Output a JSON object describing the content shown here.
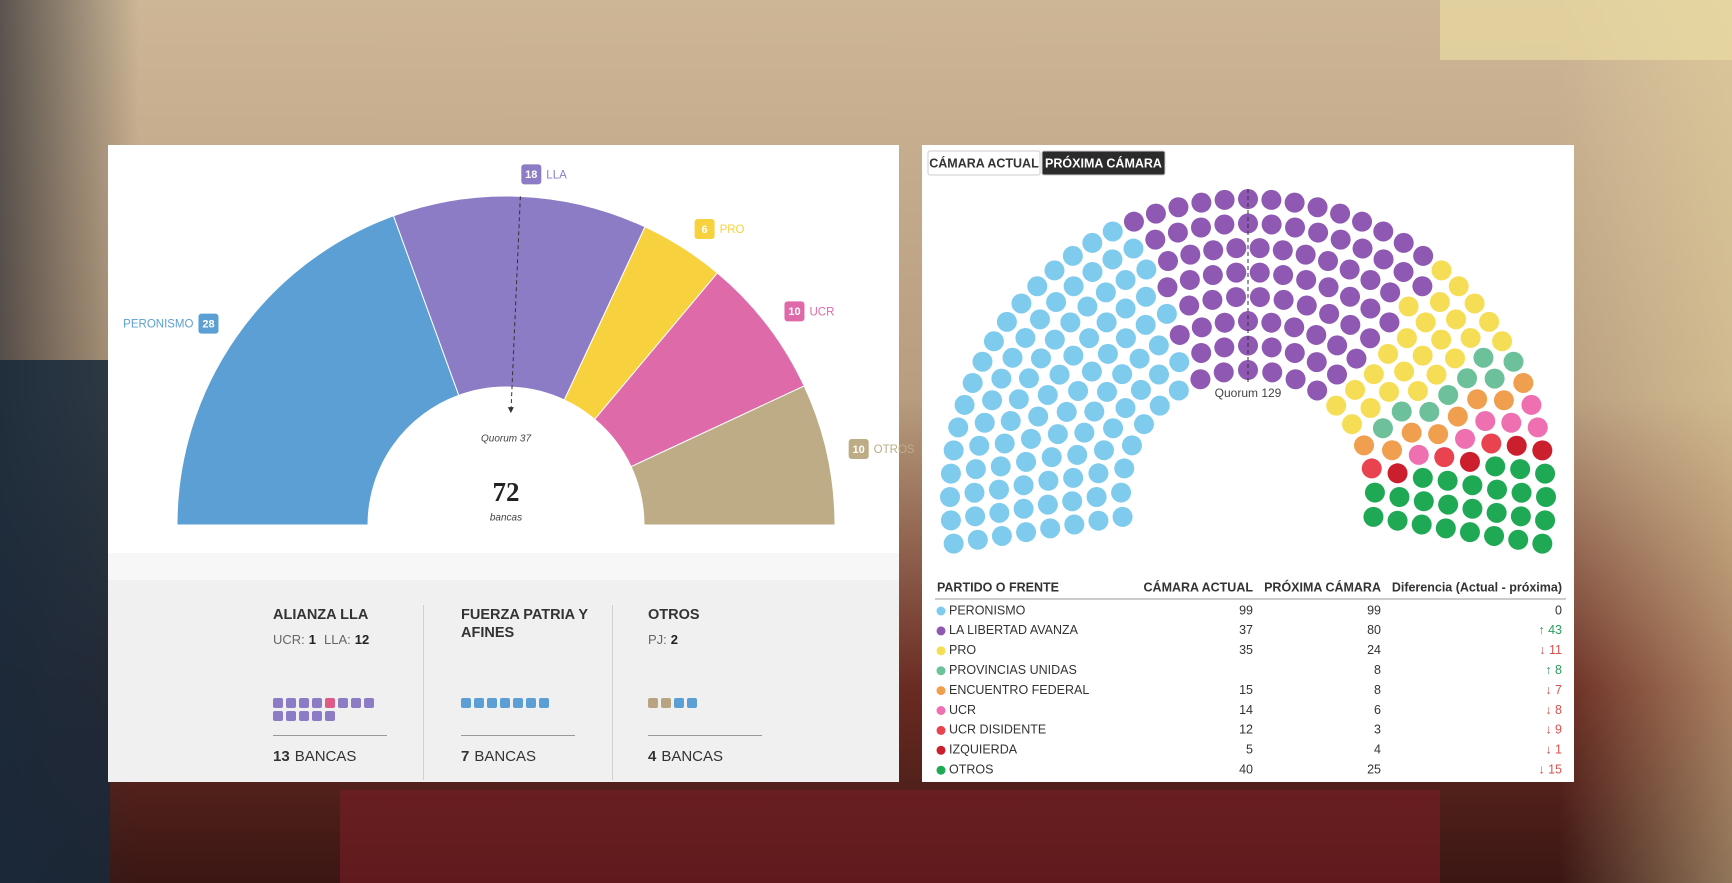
{
  "chart_data": [
    {
      "type": "pie",
      "semicircle": true,
      "categories": [
        "PERONISMO",
        "LLA",
        "PRO",
        "UCR",
        "OTROS"
      ],
      "values": [
        28,
        18,
        6,
        10,
        10
      ],
      "colors": [
        "#5b9fd4",
        "#8c7cc5",
        "#f7d23e",
        "#df6aaa",
        "#bdac85"
      ],
      "total": 72,
      "total_label": "bancas",
      "quorum": {
        "value": 37,
        "label": "Quorum 37"
      }
    },
    {
      "type": "parliament",
      "active_series": 1,
      "category_label": "PARTIDO O FRENTE",
      "categories": [
        "PERONISMO",
        "LA LIBERTAD AVANZA",
        "PRO",
        "PROVINCIAS UNIDAS",
        "ENCUENTRO FEDERAL",
        "UCR",
        "UCR DISIDENTE",
        "IZQUIERDA",
        "OTROS"
      ],
      "colors": [
        "#7fcbee",
        "#8f58b3",
        "#f5de55",
        "#6cc19a",
        "#ef9f4e",
        "#ee70b0",
        "#e8434f",
        "#cc1f2d",
        "#20a955"
      ],
      "series": [
        {
          "name": "CÁMARA ACTUAL",
          "values": [
            99,
            37,
            35,
            null,
            15,
            14,
            12,
            5,
            40
          ]
        },
        {
          "name": "PRÓXIMA CÁMARA",
          "values": [
            99,
            80,
            24,
            8,
            8,
            6,
            3,
            4,
            25
          ]
        }
      ],
      "diff_label": "Diferencia (Actual - próxima)",
      "diff_labels": [
        "0",
        "↑ 43",
        "↓ 11",
        "↑ 8",
        "↓ 7",
        "↓ 8",
        "↓ 9",
        "↓ 1",
        "↓ 15"
      ],
      "quorum": {
        "value": 129,
        "label": "Quorum 129"
      }
    }
  ],
  "coalitions": [
    {
      "title": "ALIANZA LLA",
      "breakdown": [
        {
          "label": "UCR:",
          "value": 1
        },
        {
          "label": "LLA:",
          "value": 12
        }
      ],
      "squares": [
        {
          "color": "#8c7cc5",
          "count": 4
        },
        {
          "color": "#df5a86",
          "count": 1
        },
        {
          "color": "#8c7cc5",
          "count": 8
        }
      ],
      "total": 13,
      "unit": "BANCAS"
    },
    {
      "title": "FUERZA PATRIA Y AFINES",
      "breakdown": [],
      "squares": [
        {
          "color": "#5b9fd4",
          "count": 7
        }
      ],
      "total": 7,
      "unit": "BANCAS"
    },
    {
      "title": "OTROS",
      "breakdown": [
        {
          "label": "PJ:",
          "value": 2
        }
      ],
      "squares": [
        {
          "color": "#b8a481",
          "count": 2
        },
        {
          "color": "#5b9fd4",
          "count": 2
        }
      ],
      "total": 4,
      "unit": "BANCAS"
    }
  ]
}
